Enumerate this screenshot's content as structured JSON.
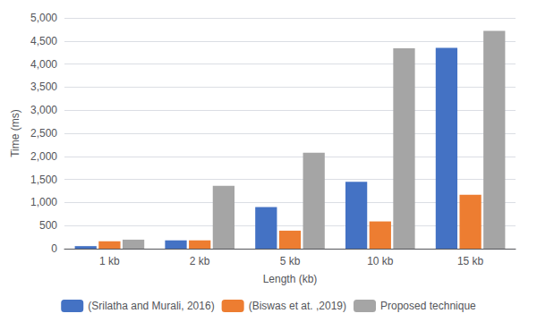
{
  "chart_data": {
    "type": "bar",
    "xlabel": "Length (kb)",
    "ylabel": "Time (ms)",
    "categories": [
      "1 kb",
      "2 kb",
      "5 kb",
      "10 kb",
      "15 kb"
    ],
    "series": [
      {
        "name": "(Srilatha and Murali, 2016)",
        "color": "#4472c4",
        "values": [
          55,
          180,
          900,
          1450,
          4350
        ]
      },
      {
        "name": "(Biswas et at. ,2019)",
        "color": "#ed7d31",
        "values": [
          160,
          180,
          390,
          590,
          1170
        ]
      },
      {
        "name": "Proposed technique",
        "color": "#a5a5a5",
        "values": [
          195,
          1360,
          2080,
          4340,
          4720
        ]
      }
    ],
    "ylim": [
      0,
      5000
    ],
    "yticks": [
      0,
      500,
      1000,
      1500,
      2000,
      2500,
      3000,
      3500,
      4000,
      4500,
      5000
    ],
    "grid": true,
    "legend": "bottom"
  }
}
